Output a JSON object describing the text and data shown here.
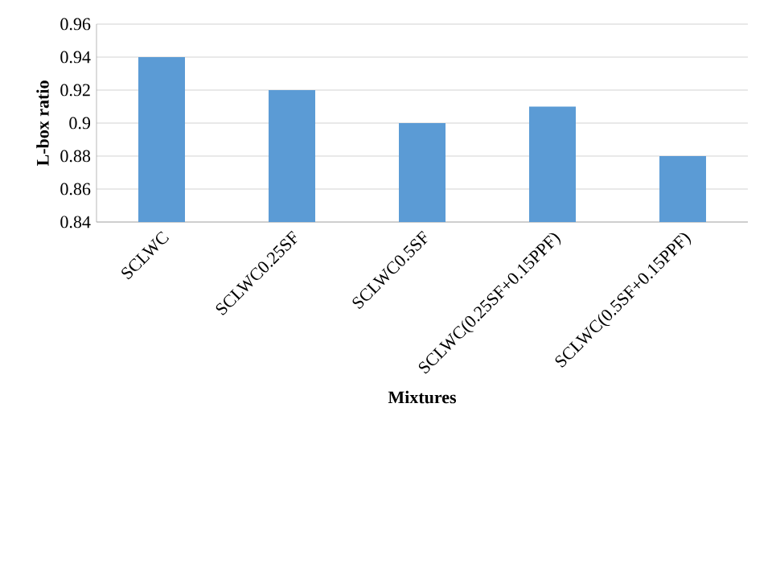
{
  "chart_data": {
    "type": "bar",
    "xlabel": "Mixtures",
    "ylabel": "L-box ratio",
    "categories": [
      "SCLWC",
      "SCLWC0.25SF",
      "SCLWC0.5SF",
      "SCLWC(0.25SF+0.15PPF)",
      "SCLWC(0.5SF+0.15PPF)"
    ],
    "values": [
      0.94,
      0.92,
      0.9,
      0.91,
      0.88
    ],
    "color": "#5b9bd5",
    "ylim": [
      0.84,
      0.96
    ],
    "yticks": [
      0.84,
      0.86,
      0.88,
      0.9,
      0.92,
      0.94,
      0.96
    ],
    "grid": "y"
  }
}
